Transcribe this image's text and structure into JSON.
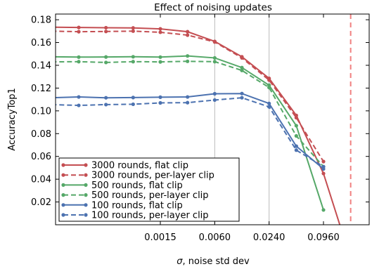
{
  "chart_data": {
    "type": "line",
    "title": "Effect of noising updates",
    "xlabel_symbol": "σ",
    "xlabel_rest": ", noise std dev",
    "ylabel": "AccuracyTop1",
    "x_scale": "log",
    "x": [
      9.375e-05,
      0.0001875,
      0.000375,
      0.00075,
      0.0015,
      0.003,
      0.006,
      0.012,
      0.024,
      0.048,
      0.096,
      0.192
    ],
    "xticks": [
      {
        "value": 0.0015,
        "label": "0.0015"
      },
      {
        "value": 0.006,
        "label": "0.0060"
      },
      {
        "value": 0.024,
        "label": "0.0240"
      },
      {
        "value": 0.096,
        "label": "0.0960"
      }
    ],
    "ylim": [
      0,
      0.185
    ],
    "yticks": [
      {
        "value": 0.02,
        "label": "0.02"
      },
      {
        "value": 0.04,
        "label": "0.04"
      },
      {
        "value": 0.06,
        "label": "0.06"
      },
      {
        "value": 0.08,
        "label": "0.08"
      },
      {
        "value": 0.1,
        "label": "0.10"
      },
      {
        "value": 0.12,
        "label": "0.12"
      },
      {
        "value": 0.14,
        "label": "0.14"
      },
      {
        "value": 0.16,
        "label": "0.16"
      },
      {
        "value": 0.18,
        "label": "0.18"
      }
    ],
    "vlines": [
      {
        "x": 0.006,
        "color": "#bbbbbb",
        "style": "solid"
      },
      {
        "x": 0.024,
        "color": "#bbbbbb",
        "style": "solid"
      },
      {
        "x": 0.192,
        "color": "#f08080",
        "style": "dashed"
      }
    ],
    "grid": false,
    "legend_position": "lower-left",
    "series": [
      {
        "name": "3000 rounds, flat clip",
        "color": "#c44e52",
        "dashed": false,
        "values": [
          0.1735,
          0.1732,
          0.173,
          0.1728,
          0.172,
          0.1695,
          0.161,
          0.1475,
          0.1285,
          0.096,
          0.045,
          -0.03
        ]
      },
      {
        "name": "3000 rounds, per-layer clip",
        "color": "#c44e52",
        "dashed": true,
        "values": [
          0.17,
          0.1695,
          0.1697,
          0.17,
          0.169,
          0.1665,
          0.1605,
          0.1465,
          0.127,
          0.094,
          0.0555,
          null
        ]
      },
      {
        "name": "500 rounds, flat clip",
        "color": "#55a868",
        "dashed": false,
        "values": [
          0.1475,
          0.1472,
          0.1473,
          0.1475,
          0.1472,
          0.1482,
          0.1465,
          0.138,
          0.1225,
          0.087,
          0.013,
          null
        ]
      },
      {
        "name": "500 rounds, per-layer clip",
        "color": "#55a868",
        "dashed": true,
        "values": [
          0.143,
          0.1432,
          0.1425,
          0.1432,
          0.143,
          0.1435,
          0.1432,
          0.1355,
          0.1205,
          0.078,
          0.051,
          null
        ]
      },
      {
        "name": "100 rounds, flat clip",
        "color": "#4c72b0",
        "dashed": false,
        "values": [
          0.1115,
          0.1122,
          0.1115,
          0.1117,
          0.112,
          0.1122,
          0.115,
          0.1152,
          0.1065,
          0.069,
          0.049,
          null
        ]
      },
      {
        "name": "100 rounds, per-layer clip",
        "color": "#4c72b0",
        "dashed": true,
        "values": [
          0.1055,
          0.1048,
          0.1055,
          0.1058,
          0.107,
          0.1072,
          0.1095,
          0.1115,
          0.1035,
          0.0655,
          0.051,
          null
        ]
      }
    ]
  }
}
